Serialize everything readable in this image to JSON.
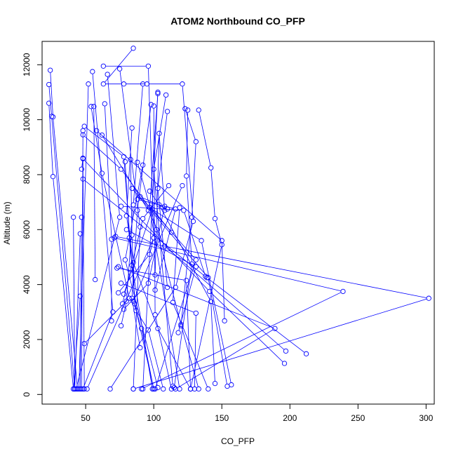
{
  "chart_data": {
    "type": "scatter",
    "title": "ATOM2 Northbound CO_PFP",
    "xlabel": "CO_PFP",
    "ylabel": "Altitude (m)",
    "xlim": [
      18,
      306
    ],
    "ylim": [
      -350,
      12850
    ],
    "x_ticks": [
      50,
      100,
      150,
      200,
      250,
      300
    ],
    "x_tick_labels": [
      "50",
      "100",
      "150",
      "200",
      "250",
      "300"
    ],
    "y_ticks": [
      0,
      2000,
      4000,
      6000,
      8000,
      10000,
      12000
    ],
    "y_tick_labels": [
      "0",
      "2000",
      "4000",
      "6000",
      "8000",
      "10000",
      "12000"
    ],
    "grid": false,
    "legend": "none",
    "marker": "open-circle",
    "connected": true,
    "series": [
      {
        "color": "#0000ff",
        "profiles": [
          [
            [
              24,
              11800
            ],
            [
              26,
              10100
            ],
            [
              44,
              200
            ]
          ],
          [
            [
              23,
              11280
            ],
            [
              25,
              10120
            ],
            [
              42,
              200
            ]
          ],
          [
            [
              23,
              10600
            ],
            [
              26,
              7930
            ],
            [
              41,
              200
            ]
          ],
          [
            [
              52,
              11300
            ],
            [
              45,
              200
            ]
          ],
          [
            [
              55,
              11750
            ],
            [
              70,
              3000
            ],
            [
              48,
              200
            ]
          ],
          [
            [
              63,
              11950
            ],
            [
              96,
              11950
            ],
            [
              100,
              5700
            ],
            [
              51,
              200
            ]
          ],
          [
            [
              66,
              11650
            ],
            [
              75,
              6450
            ],
            [
              43,
              200
            ]
          ],
          [
            [
              85,
              12600
            ],
            [
              63,
              11300
            ],
            [
              78,
              11300
            ],
            [
              95,
              11300
            ],
            [
              121,
              11300
            ],
            [
              129,
              6300
            ],
            [
              116,
              3900
            ],
            [
              68,
              200
            ]
          ],
          [
            [
              75,
              11850
            ],
            [
              90,
              6100
            ],
            [
              85,
              200
            ]
          ],
          [
            [
              103,
              11000
            ],
            [
              92,
              200
            ]
          ],
          [
            [
              100,
              10500
            ],
            [
              101,
              2900
            ],
            [
              113,
              200
            ]
          ],
          [
            [
              103,
              10950
            ],
            [
              97,
              6800
            ],
            [
              119,
              200
            ]
          ],
          [
            [
              109,
              10900
            ],
            [
              100,
              8200
            ],
            [
              114,
              300
            ]
          ],
          [
            [
              125,
              10350
            ],
            [
              124,
              7950
            ],
            [
              128,
              4750
            ],
            [
              115,
              250
            ]
          ],
          [
            [
              133,
              10350
            ],
            [
              142,
              8250
            ],
            [
              145,
              6400
            ],
            [
              150,
              5450
            ],
            [
              127,
              200
            ]
          ],
          [
            [
              54,
              10480
            ],
            [
              62,
              8050
            ],
            [
              82,
              3500
            ],
            [
              49,
              1850
            ]
          ],
          [
            [
              56,
              10480
            ],
            [
              57,
              4180
            ]
          ],
          [
            [
              64,
              10580
            ],
            [
              69,
              5650
            ],
            [
              69,
              2680
            ]
          ],
          [
            [
              49,
              9760
            ],
            [
              78,
              8650
            ],
            [
              84,
              4700
            ],
            [
              99,
              200
            ]
          ],
          [
            [
              48,
              9600
            ],
            [
              47,
              200
            ]
          ],
          [
            [
              48,
              9450
            ],
            [
              76,
              8200
            ],
            [
              97,
              6800
            ],
            [
              135,
              5600
            ],
            [
              157,
              350
            ]
          ],
          [
            [
              48,
              8580
            ],
            [
              141,
              3750
            ],
            [
              196,
              1130
            ]
          ],
          [
            [
              48,
              7840
            ],
            [
              139,
              4250
            ],
            [
              212,
              1480
            ]
          ],
          [
            [
              47,
              6450
            ],
            [
              46,
              200
            ]
          ],
          [
            [
              46,
              5850
            ],
            [
              42,
              200
            ]
          ],
          [
            [
              41,
              6450
            ],
            [
              42,
              200
            ]
          ],
          [
            [
              46,
              3580
            ],
            [
              41,
              200
            ]
          ],
          [
            [
              84,
              9700
            ],
            [
              80,
              6500
            ],
            [
              85,
              4800
            ],
            [
              103,
              2400
            ],
            [
              127,
              200
            ]
          ],
          [
            [
              83,
              8550
            ],
            [
              84,
              5800
            ],
            [
              86,
              3300
            ],
            [
              100,
              200
            ]
          ],
          [
            [
              79,
              8470
            ],
            [
              82,
              5700
            ],
            [
              87,
              3050
            ],
            [
              96,
              2350
            ],
            [
              107,
              200
            ]
          ],
          [
            [
              88,
              8450
            ],
            [
              102,
              6000
            ],
            [
              120,
              2550
            ],
            [
              133,
              200
            ]
          ],
          [
            [
              92,
              8350
            ],
            [
              79,
              4900
            ],
            [
              103,
              250
            ]
          ],
          [
            [
              121,
              7600
            ],
            [
              85,
              3400
            ],
            [
              91,
              2400
            ],
            [
              100,
              200
            ]
          ],
          [
            [
              58,
              9600
            ],
            [
              150,
              5600
            ],
            [
              152,
              2680
            ]
          ],
          [
            [
              62,
              9440
            ],
            [
              96,
              6700
            ],
            [
              108,
              5400
            ],
            [
              197,
              1580
            ]
          ],
          [
            [
              84,
              7500
            ],
            [
              140,
              4250
            ],
            [
              154,
              300
            ]
          ],
          [
            [
              97,
              7400
            ],
            [
              104,
              6900
            ],
            [
              142,
              3380
            ],
            [
              145,
              400
            ]
          ],
          [
            [
              88,
              7100
            ],
            [
              116,
              6750
            ],
            [
              101,
              3800
            ]
          ],
          [
            [
              76,
              6850
            ],
            [
              122,
              6700
            ],
            [
              138,
              4300
            ]
          ],
          [
            [
              110,
              6750
            ],
            [
              90,
              7200
            ],
            [
              131,
              4900
            ],
            [
              101,
              200
            ]
          ],
          [
            [
              119,
              6800
            ],
            [
              114,
              3350
            ],
            [
              140,
              200
            ]
          ],
          [
            [
              72,
              5750
            ],
            [
              302,
              3500
            ],
            [
              85,
              200
            ]
          ],
          [
            [
              71,
              5700
            ],
            [
              239,
              3750
            ],
            [
              91,
              200
            ]
          ],
          [
            [
              74,
              4650
            ],
            [
              189,
              2400
            ],
            [
              116,
              200
            ]
          ],
          [
            [
              73,
              4600
            ],
            [
              124,
              4150
            ],
            [
              127,
              200
            ]
          ],
          [
            [
              80,
              6000
            ],
            [
              131,
              4650
            ],
            [
              118,
              2250
            ]
          ],
          [
            [
              76,
              4050
            ],
            [
              131,
              2960
            ],
            [
              130,
              200
            ]
          ],
          [
            [
              78,
              3100
            ],
            [
              96,
              4050
            ],
            [
              108,
              6850
            ]
          ],
          [
            [
              78,
              3650
            ],
            [
              99,
              6750
            ],
            [
              113,
              5900
            ]
          ],
          [
            [
              74,
              3700
            ],
            [
              97,
              5100
            ],
            [
              100,
              5700
            ]
          ],
          [
            [
              77,
              3300
            ],
            [
              92,
              6400
            ],
            [
              111,
              7600
            ]
          ],
          [
            [
              123,
              10400
            ],
            [
              131,
              9200
            ],
            [
              128,
              6450
            ],
            [
              120,
              2500
            ]
          ],
          [
            [
              110,
              10300
            ],
            [
              103,
              7500
            ],
            [
              110,
              3900
            ]
          ],
          [
            [
              98,
              10550
            ],
            [
              88,
              6700
            ],
            [
              84,
              3500
            ],
            [
              90,
              1700
            ]
          ],
          [
            [
              92,
              11300
            ],
            [
              85,
              6900
            ],
            [
              80,
              3400
            ],
            [
              76,
              2500
            ]
          ],
          [
            [
              108,
              6700
            ],
            [
              104,
              9500
            ],
            [
              101,
              4350
            ]
          ],
          [
            [
              47,
              8200
            ],
            [
              48,
              8600
            ],
            [
              49,
              200
            ]
          ]
        ]
      }
    ]
  }
}
